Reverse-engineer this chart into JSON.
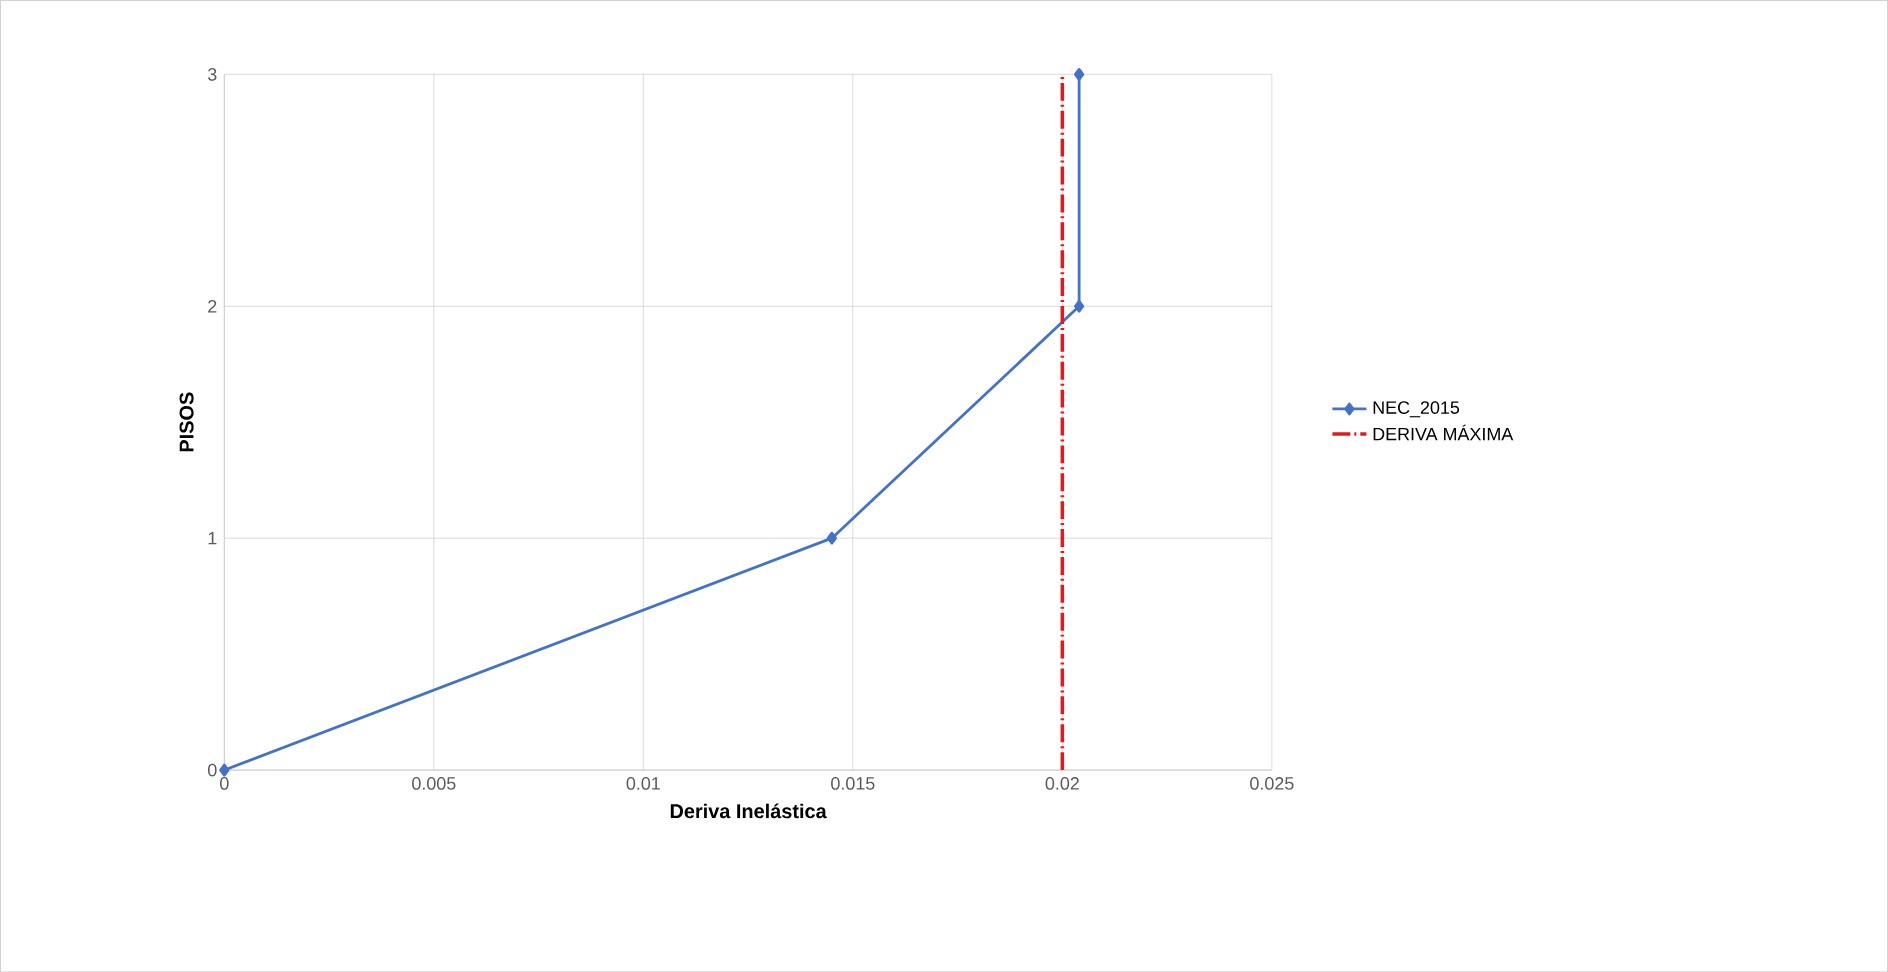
{
  "chart_data": {
    "type": "line",
    "xlabel": "Deriva Inelástica",
    "ylabel": "PISOS",
    "series": [
      {
        "name": "NEC_2015",
        "color": "#4472c4",
        "x": [
          0,
          0.0145,
          0.0204,
          0.0204
        ],
        "values": [
          0,
          1,
          2,
          3
        ],
        "marker": "diamond",
        "line_style": "solid"
      },
      {
        "name": "DERIVA MÁXIMA",
        "color": "#e31a1c",
        "x": [
          0.02,
          0.02
        ],
        "values": [
          0,
          3
        ],
        "marker": "none",
        "line_style": "dashdot"
      }
    ],
    "xlim": [
      0,
      0.025
    ],
    "xticks": [
      0,
      0.005,
      0.01,
      0.015,
      0.02,
      0.025
    ],
    "ylim": [
      0,
      3
    ],
    "yticks": [
      0,
      1,
      2,
      3
    ],
    "grid": true,
    "legend": "right"
  }
}
